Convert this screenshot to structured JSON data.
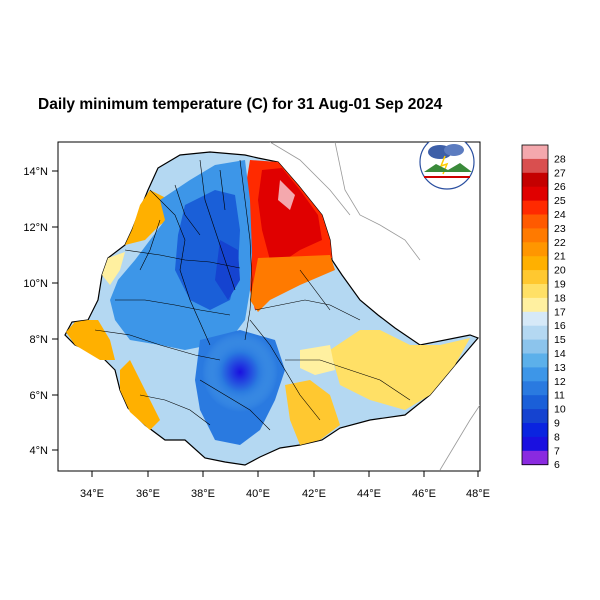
{
  "title": "Daily minimum temperature (C) for 31 Aug-01 Sep 2024",
  "map": {
    "x_ticks": [
      "34°E",
      "36°E",
      "38°E",
      "40°E",
      "42°E",
      "44°E",
      "46°E",
      "48°E"
    ],
    "y_ticks": [
      "14°N",
      "12°N",
      "10°N",
      "8°N",
      "6°N",
      "4°N"
    ],
    "x_tick_values": [
      34,
      36,
      38,
      40,
      42,
      44,
      46,
      48
    ],
    "y_tick_values": [
      14,
      12,
      10,
      8,
      6,
      4
    ],
    "lon_range": [
      33,
      48.2
    ],
    "lat_range": [
      3.2,
      15
    ]
  },
  "colorbar": {
    "labels": [
      "28",
      "27",
      "26",
      "25",
      "24",
      "23",
      "22",
      "21",
      "20",
      "19",
      "18",
      "17",
      "16",
      "15",
      "14",
      "13",
      "12",
      "11",
      "10",
      "9",
      "8",
      "7",
      "6"
    ],
    "colors": [
      "#f4a8ad",
      "#d94f4f",
      "#c40000",
      "#e00000",
      "#ff2a00",
      "#ff5a00",
      "#ff7a00",
      "#ff9600",
      "#ffb000",
      "#ffc830",
      "#ffe066",
      "#fff0a0",
      "#d6e9f8",
      "#b4d8f2",
      "#8cc4ec",
      "#5cb0ea",
      "#3d96e8",
      "#2a7ae0",
      "#1a5fd8",
      "#1543d0",
      "#0a24e0",
      "#1a10e0",
      "#8a2ae0"
    ]
  },
  "logo": {
    "icon": "ethiopian-meteorology-institute-logo"
  }
}
